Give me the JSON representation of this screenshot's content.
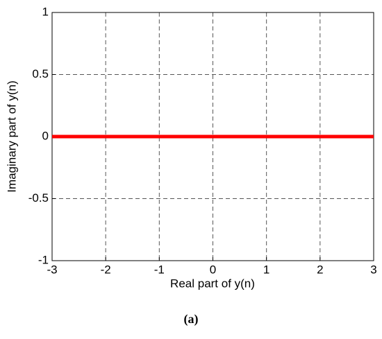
{
  "chart_data": {
    "type": "line",
    "x": [
      -3,
      3
    ],
    "series": [
      {
        "color": "#ff0000",
        "values": [
          0,
          0
        ]
      }
    ],
    "xlim": [
      -3,
      3
    ],
    "xticks": [
      -3,
      -2,
      -1,
      0,
      1,
      2,
      3
    ],
    "ylim": [
      -1,
      1
    ],
    "yticks": [
      -1,
      -0.5,
      0,
      0.5,
      1
    ],
    "grid": true,
    "xlabel": "Real part of y(n)",
    "ylabel": "Imaginary part of y(n)",
    "caption": "(a)"
  }
}
